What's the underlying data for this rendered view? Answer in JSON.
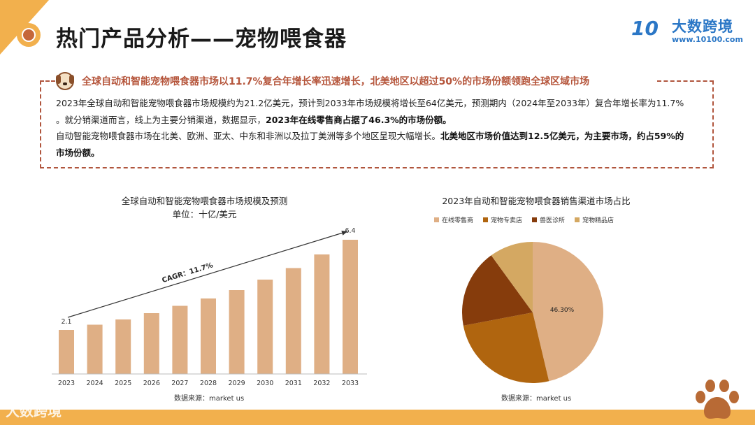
{
  "header": {
    "title": "热门产品分析——宠物喂食器",
    "brand_mark": "10",
    "brand_name": "大数跨境",
    "brand_url": "www.10100.com"
  },
  "summary": {
    "headline": "全球自动和智能宠物喂食器市场以11.7%复合年增长率迅速增长，北美地区以超过50%的市场份额领跑全球区域市场",
    "p1_a": "2023年全球自动和智能宠物喂食器市场规模约为21.2亿美元，预计到2033年市场规模将增长至64亿美元，预测期内（2024年至2033年）复合年增长率为11.7% 。就分销渠道而言，线上为主要分销渠道，数据显示，",
    "p1_b": "2023年在线零售商占据了46.3%的市场份额。",
    "p2_a": "自动智能宠物喂食器市场在北美、欧洲、亚太、中东和非洲以及拉丁美洲等多个地区呈现大幅增长。",
    "p2_b": "北美地区市场价值达到12.5亿美元，为主要市场，约占59%的市场份额。"
  },
  "bar_chart": {
    "title": "全球自动和智能宠物喂食器市场规模及预测",
    "subtitle": "单位：十亿/美元",
    "cagr_label": "CAGR：11.7%",
    "first_label": "2.1",
    "last_label": "6.4",
    "source": "数据来源：market us"
  },
  "pie_chart": {
    "title": "2023年自动和智能宠物喂食器销售渠道市场占比",
    "slice_label": "46.30%",
    "source": "数据来源：market us"
  },
  "footer": {
    "logo": "大数跨境"
  },
  "colors": {
    "bar": "#dfaf85",
    "accent": "#f2b04d",
    "headline": "#b5553b",
    "brand": "#2b77c6"
  },
  "chart_data": [
    {
      "type": "bar",
      "title": "全球自动和智能宠物喂食器市场规模及预测",
      "ylabel": "单位：十亿/美元",
      "categories": [
        "2023",
        "2024",
        "2025",
        "2026",
        "2027",
        "2028",
        "2029",
        "2030",
        "2031",
        "2032",
        "2033"
      ],
      "values": [
        2.1,
        2.35,
        2.6,
        2.9,
        3.25,
        3.6,
        4.0,
        4.5,
        5.05,
        5.7,
        6.4
      ],
      "ylim": [
        0,
        7
      ],
      "annotation": "CAGR：11.7%",
      "grid": false
    },
    {
      "type": "pie",
      "title": "2023年自动和智能宠物喂食器销售渠道市场占比",
      "categories": [
        "在线零售商",
        "宠物专卖店",
        "兽医诊所",
        "宠物精品店"
      ],
      "values": [
        46.3,
        25.7,
        18.0,
        10.0
      ],
      "colors": [
        "#dfaf85",
        "#b0650f",
        "#863c0c",
        "#d4a862"
      ],
      "legend": "top"
    }
  ]
}
